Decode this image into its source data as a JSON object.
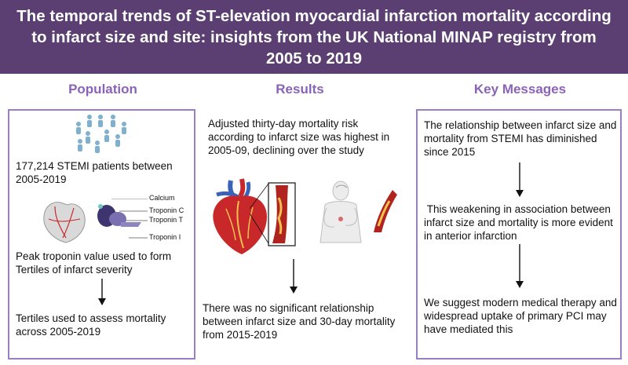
{
  "header": {
    "title": "The temporal trends of ST-elevation myocardial infarction mortality according to infarct size and site: insights from the UK National MINAP registry from 2005 to 2019"
  },
  "population": {
    "heading": "Population",
    "patients_text": "177,214 STEMI patients between 2005-2019",
    "troponin_labels": [
      "Calcium",
      "Troponin C",
      "Troponin T",
      "Troponin I"
    ],
    "peak_text": "Peak troponin value used to form Tertiles of infarct severity",
    "tertiles_text": "Tertiles used to assess mortality across 2005-2019"
  },
  "results": {
    "heading": "Results",
    "risk_text": "Adjusted thirty-day mortality risk according to infarct size was highest in 2005-09, declining over the study",
    "no_relationship_text": "There was no significant relationship between infarct size and 30-day mortality from 2015-2019"
  },
  "key_messages": {
    "heading": "Key Messages",
    "msg1": "The relationship between infarct size and mortality from STEMI has diminished since 2015",
    "msg2": " This weakening in association between infarct size and mortality is more evident in anterior infarction",
    "msg3": "We suggest modern medical therapy and widespread uptake of primary PCI may have mediated this"
  },
  "colors": {
    "banner": "#5b3f73",
    "heading": "#8a63b8",
    "panel_border": "#9b7ec4",
    "people": "#7fb0cf",
    "heart_red": "#c8282a"
  }
}
